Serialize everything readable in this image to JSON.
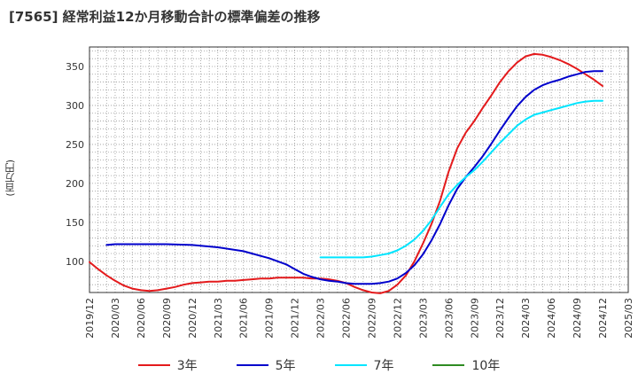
{
  "chart_data": {
    "type": "line",
    "title": "[7565]  経常利益12か月移動合計の標準偏差の推移",
    "ylabel": "(百万円)",
    "xlabel": "",
    "ylim": [
      60,
      375
    ],
    "yticks": [
      100,
      150,
      200,
      250,
      300,
      350
    ],
    "x_ticks": [
      "2019/12",
      "2020/03",
      "2020/06",
      "2020/09",
      "2020/12",
      "2021/03",
      "2021/06",
      "2021/09",
      "2021/12",
      "2022/03",
      "2022/06",
      "2022/09",
      "2022/12",
      "2023/03",
      "2023/06",
      "2023/09",
      "2023/12",
      "2024/03",
      "2024/06",
      "2024/09",
      "2024/12",
      "2025/03"
    ],
    "grid": true,
    "legend_position": "bottom",
    "series": [
      {
        "name": "3年",
        "color": "#e41a1c",
        "points": [
          [
            "2019/12",
            99
          ],
          [
            "2020/01",
            90
          ],
          [
            "2020/02",
            82
          ],
          [
            "2020/03",
            75
          ],
          [
            "2020/04",
            69
          ],
          [
            "2020/05",
            65
          ],
          [
            "2020/06",
            63
          ],
          [
            "2020/07",
            62
          ],
          [
            "2020/08",
            63
          ],
          [
            "2020/09",
            65
          ],
          [
            "2020/10",
            67
          ],
          [
            "2020/11",
            70
          ],
          [
            "2020/12",
            72
          ],
          [
            "2021/01",
            73
          ],
          [
            "2021/02",
            74
          ],
          [
            "2021/03",
            74
          ],
          [
            "2021/04",
            75
          ],
          [
            "2021/05",
            75
          ],
          [
            "2021/06",
            76
          ],
          [
            "2021/07",
            77
          ],
          [
            "2021/08",
            78
          ],
          [
            "2021/09",
            78
          ],
          [
            "2021/10",
            79
          ],
          [
            "2021/11",
            79
          ],
          [
            "2021/12",
            79
          ],
          [
            "2022/01",
            79
          ],
          [
            "2022/02",
            78
          ],
          [
            "2022/03",
            78
          ],
          [
            "2022/04",
            77
          ],
          [
            "2022/05",
            75
          ],
          [
            "2022/06",
            72
          ],
          [
            "2022/07",
            67
          ],
          [
            "2022/08",
            63
          ],
          [
            "2022/09",
            60
          ],
          [
            "2022/10",
            59
          ],
          [
            "2022/11",
            62
          ],
          [
            "2022/12",
            70
          ],
          [
            "2023/01",
            82
          ],
          [
            "2023/02",
            100
          ],
          [
            "2023/03",
            123
          ],
          [
            "2023/04",
            148
          ],
          [
            "2023/05",
            178
          ],
          [
            "2023/06",
            215
          ],
          [
            "2023/07",
            245
          ],
          [
            "2023/08",
            265
          ],
          [
            "2023/09",
            280
          ],
          [
            "2023/10",
            297
          ],
          [
            "2023/11",
            313
          ],
          [
            "2023/12",
            330
          ],
          [
            "2024/01",
            344
          ],
          [
            "2024/02",
            355
          ],
          [
            "2024/03",
            363
          ],
          [
            "2024/04",
            366
          ],
          [
            "2024/05",
            365
          ],
          [
            "2024/06",
            362
          ],
          [
            "2024/07",
            358
          ],
          [
            "2024/08",
            353
          ],
          [
            "2024/09",
            347
          ],
          [
            "2024/10",
            340
          ],
          [
            "2024/11",
            333
          ],
          [
            "2024/12",
            325
          ]
        ]
      },
      {
        "name": "5年",
        "color": "#0000cc",
        "points": [
          [
            "2020/02",
            121
          ],
          [
            "2020/03",
            122
          ],
          [
            "2020/05",
            122
          ],
          [
            "2020/06",
            122
          ],
          [
            "2020/09",
            122
          ],
          [
            "2020/12",
            121
          ],
          [
            "2021/03",
            118
          ],
          [
            "2021/06",
            113
          ],
          [
            "2021/08",
            107
          ],
          [
            "2021/09",
            104
          ],
          [
            "2021/11",
            96
          ],
          [
            "2021/12",
            90
          ],
          [
            "2022/01",
            84
          ],
          [
            "2022/02",
            80
          ],
          [
            "2022/03",
            77
          ],
          [
            "2022/04",
            75
          ],
          [
            "2022/05",
            74
          ],
          [
            "2022/06",
            72
          ],
          [
            "2022/07",
            71
          ],
          [
            "2022/08",
            71
          ],
          [
            "2022/09",
            71
          ],
          [
            "2022/10",
            72
          ],
          [
            "2022/11",
            74
          ],
          [
            "2022/12",
            78
          ],
          [
            "2023/01",
            85
          ],
          [
            "2023/02",
            95
          ],
          [
            "2023/03",
            109
          ],
          [
            "2023/04",
            127
          ],
          [
            "2023/05",
            148
          ],
          [
            "2023/06",
            172
          ],
          [
            "2023/07",
            193
          ],
          [
            "2023/08",
            208
          ],
          [
            "2023/09",
            221
          ],
          [
            "2023/10",
            235
          ],
          [
            "2023/11",
            251
          ],
          [
            "2023/12",
            268
          ],
          [
            "2024/01",
            284
          ],
          [
            "2024/02",
            299
          ],
          [
            "2024/03",
            311
          ],
          [
            "2024/04",
            320
          ],
          [
            "2024/05",
            326
          ],
          [
            "2024/06",
            330
          ],
          [
            "2024/07",
            333
          ],
          [
            "2024/08",
            337
          ],
          [
            "2024/09",
            340
          ],
          [
            "2024/10",
            343
          ],
          [
            "2024/11",
            344
          ],
          [
            "2024/12",
            344
          ]
        ]
      },
      {
        "name": "7年",
        "color": "#00e5ff",
        "points": [
          [
            "2022/03",
            105
          ],
          [
            "2022/05",
            105
          ],
          [
            "2022/06",
            105
          ],
          [
            "2022/08",
            105
          ],
          [
            "2022/09",
            106
          ],
          [
            "2022/10",
            108
          ],
          [
            "2022/11",
            110
          ],
          [
            "2022/12",
            114
          ],
          [
            "2023/01",
            120
          ],
          [
            "2023/02",
            128
          ],
          [
            "2023/03",
            139
          ],
          [
            "2023/04",
            153
          ],
          [
            "2023/05",
            170
          ],
          [
            "2023/06",
            186
          ],
          [
            "2023/07",
            198
          ],
          [
            "2023/08",
            208
          ],
          [
            "2023/09",
            217
          ],
          [
            "2023/10",
            228
          ],
          [
            "2023/11",
            240
          ],
          [
            "2023/12",
            252
          ],
          [
            "2024/01",
            263
          ],
          [
            "2024/02",
            274
          ],
          [
            "2024/03",
            282
          ],
          [
            "2024/04",
            288
          ],
          [
            "2024/05",
            291
          ],
          [
            "2024/06",
            294
          ],
          [
            "2024/07",
            297
          ],
          [
            "2024/08",
            300
          ],
          [
            "2024/09",
            303
          ],
          [
            "2024/10",
            305
          ],
          [
            "2024/11",
            306
          ],
          [
            "2024/12",
            306
          ]
        ]
      },
      {
        "name": "10年",
        "color": "#2e8b22",
        "points": []
      }
    ]
  }
}
